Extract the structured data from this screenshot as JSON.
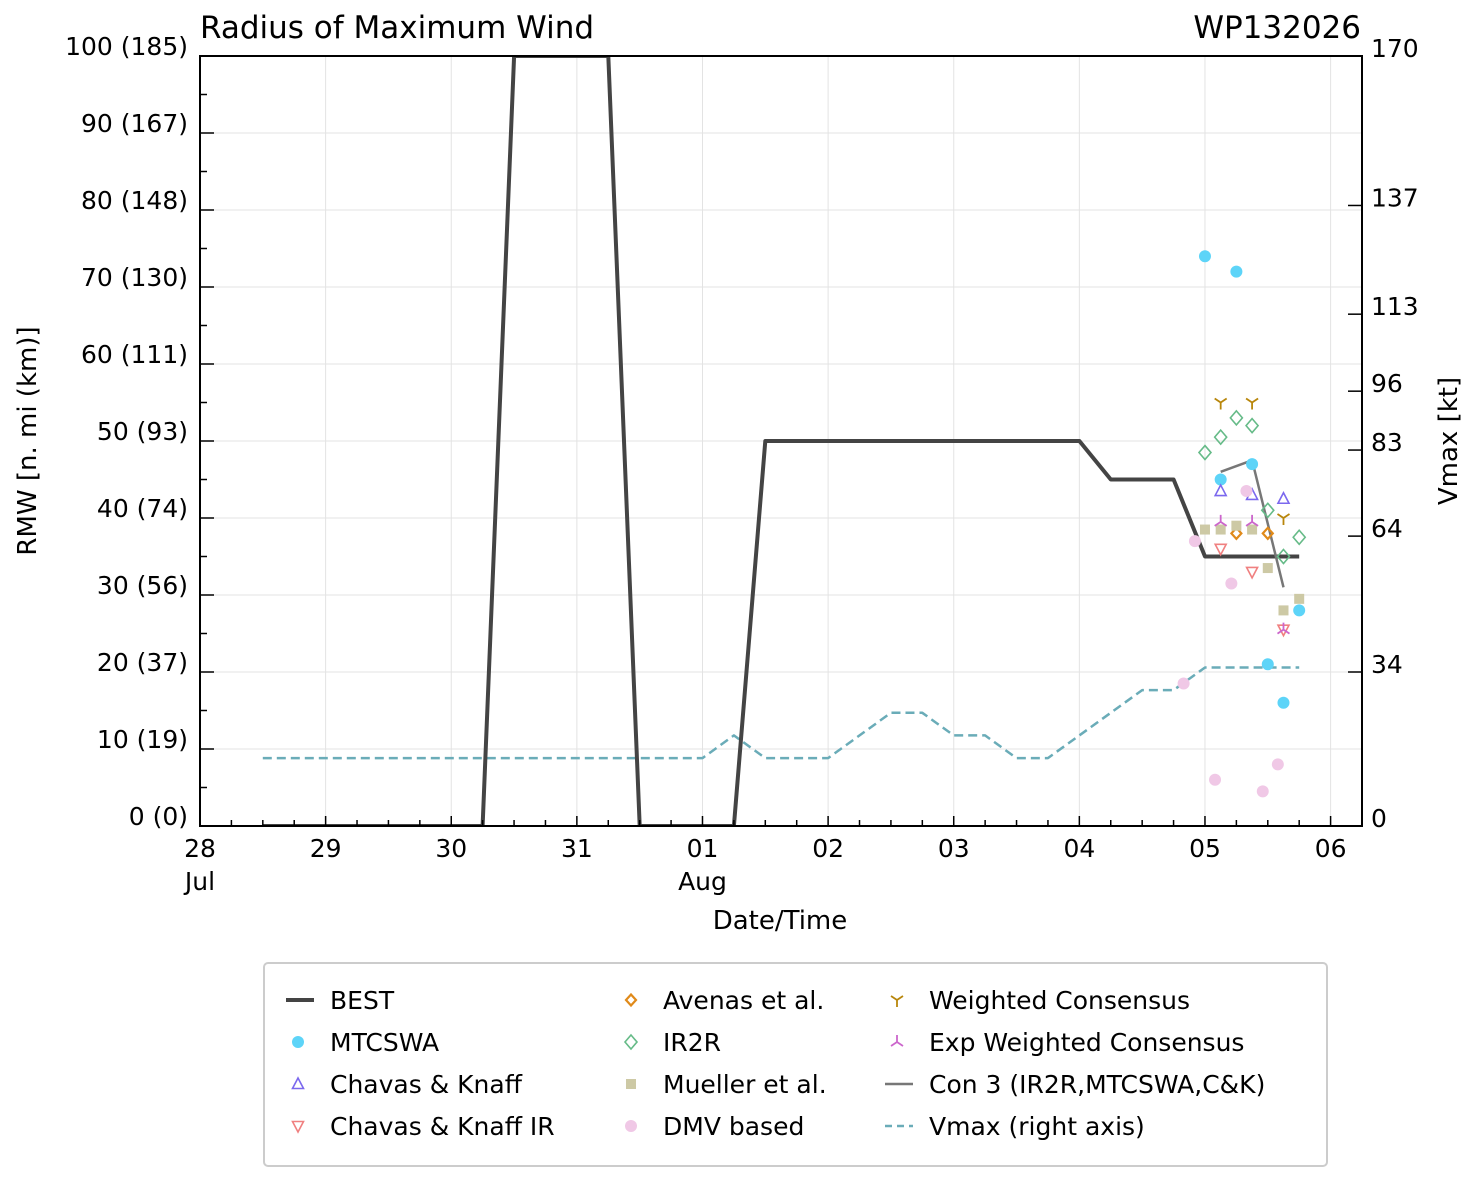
{
  "chart_data": {
    "type": "line",
    "title": "Radius of Maximum Wind",
    "storm_id": "WP132026",
    "xlabel": "Date/Time",
    "ylabel": "RMW [n. mi (km)]",
    "y2label": "Vmax [kt]",
    "xlim_days": [
      0,
      9.25
    ],
    "ylim": [
      0,
      100
    ],
    "y2lim": [
      0,
      170
    ],
    "grid": true,
    "legend_position": "bottom",
    "x_ticks": [
      {
        "day": 0,
        "label": "28",
        "sub": "Jul"
      },
      {
        "day": 1,
        "label": "29",
        "sub": ""
      },
      {
        "day": 2,
        "label": "30",
        "sub": ""
      },
      {
        "day": 3,
        "label": "31",
        "sub": ""
      },
      {
        "day": 4,
        "label": "01",
        "sub": "Aug"
      },
      {
        "day": 5,
        "label": "02",
        "sub": ""
      },
      {
        "day": 6,
        "label": "03",
        "sub": ""
      },
      {
        "day": 7,
        "label": "04",
        "sub": ""
      },
      {
        "day": 8,
        "label": "05",
        "sub": ""
      },
      {
        "day": 9,
        "label": "06",
        "sub": ""
      }
    ],
    "y_ticks": [
      {
        "value": 0,
        "label": "0 (0)"
      },
      {
        "value": 10,
        "label": "10 (19)"
      },
      {
        "value": 20,
        "label": "20 (37)"
      },
      {
        "value": 30,
        "label": "30 (56)"
      },
      {
        "value": 40,
        "label": "40 (74)"
      },
      {
        "value": 50,
        "label": "50 (93)"
      },
      {
        "value": 60,
        "label": "60 (111)"
      },
      {
        "value": 70,
        "label": "70 (130)"
      },
      {
        "value": 80,
        "label": "80 (148)"
      },
      {
        "value": 90,
        "label": "90 (167)"
      },
      {
        "value": 100,
        "label": "100 (185)"
      }
    ],
    "y2_ticks": [
      {
        "value": 0,
        "label": "0"
      },
      {
        "value": 34,
        "label": "34"
      },
      {
        "value": 64,
        "label": "64"
      },
      {
        "value": 83,
        "label": "83"
      },
      {
        "value": 96,
        "label": "96"
      },
      {
        "value": 113,
        "label": "113"
      },
      {
        "value": 137,
        "label": "137"
      },
      {
        "value": 170,
        "label": "170"
      }
    ],
    "series": [
      {
        "name": "BEST",
        "kind": "line",
        "color": "#444444",
        "width": 4,
        "axis": "left",
        "points": [
          [
            0.5,
            0
          ],
          [
            2.25,
            0
          ],
          [
            2.5,
            100
          ],
          [
            3.25,
            100
          ],
          [
            3.5,
            0
          ],
          [
            4.25,
            0
          ],
          [
            4.5,
            50
          ],
          [
            7.0,
            50
          ],
          [
            7.25,
            45
          ],
          [
            7.75,
            45
          ],
          [
            8.0,
            35
          ],
          [
            8.75,
            35
          ]
        ]
      },
      {
        "name": "MTCSWA",
        "kind": "marker",
        "marker": "circle-filled",
        "color": "#5dd4f8",
        "axis": "left",
        "points": [
          [
            8.0,
            74
          ],
          [
            8.25,
            72
          ],
          [
            8.125,
            45
          ],
          [
            8.375,
            47
          ],
          [
            8.5,
            21
          ],
          [
            8.625,
            16
          ],
          [
            8.75,
            28
          ]
        ]
      },
      {
        "name": "Chavas & Knaff",
        "kind": "marker",
        "marker": "triangle-up",
        "color": "#7b68ee",
        "axis": "left",
        "points": [
          [
            8.125,
            43.5
          ],
          [
            8.375,
            43
          ],
          [
            8.625,
            42.5
          ]
        ]
      },
      {
        "name": "Chavas & Knaff IR",
        "kind": "marker",
        "marker": "triangle-down",
        "color": "#f08080",
        "axis": "left",
        "points": [
          [
            8.125,
            36
          ],
          [
            8.375,
            33
          ],
          [
            8.625,
            25.5
          ]
        ]
      },
      {
        "name": "Avenas et al.",
        "kind": "marker",
        "marker": "diamond-small",
        "color": "#e08a1a",
        "axis": "left",
        "points": [
          [
            8.25,
            38
          ],
          [
            8.5,
            38
          ]
        ]
      },
      {
        "name": "IR2R",
        "kind": "marker",
        "marker": "diamond",
        "color": "#66bb88",
        "axis": "left",
        "points": [
          [
            8.0,
            48.5
          ],
          [
            8.125,
            50.5
          ],
          [
            8.25,
            53
          ],
          [
            8.375,
            52
          ],
          [
            8.5,
            41
          ],
          [
            8.625,
            35
          ],
          [
            8.75,
            37.5
          ]
        ]
      },
      {
        "name": "Mueller et al.",
        "kind": "marker",
        "marker": "square-filled",
        "color": "#cdc9a5",
        "axis": "left",
        "points": [
          [
            8.0,
            38.5
          ],
          [
            8.125,
            38.5
          ],
          [
            8.25,
            39
          ],
          [
            8.375,
            38.5
          ],
          [
            8.5,
            33.5
          ],
          [
            8.625,
            28
          ],
          [
            8.75,
            29.5
          ]
        ]
      },
      {
        "name": "DMV based",
        "kind": "marker",
        "marker": "circle-filled",
        "color": "#f0c8e6",
        "axis": "left",
        "points": [
          [
            7.83,
            18.5
          ],
          [
            7.92,
            37
          ],
          [
            8.08,
            6
          ],
          [
            8.21,
            31.5
          ],
          [
            8.33,
            43.5
          ],
          [
            8.46,
            4.5
          ],
          [
            8.58,
            8
          ]
        ]
      },
      {
        "name": "Weighted Consensus",
        "kind": "marker",
        "marker": "tri-down",
        "color": "#b8860b",
        "axis": "left",
        "points": [
          [
            8.125,
            55
          ],
          [
            8.375,
            55
          ],
          [
            8.625,
            40
          ]
        ]
      },
      {
        "name": "Exp Weighted Consensus",
        "kind": "marker",
        "marker": "tri-up",
        "color": "#cc66cc",
        "axis": "left",
        "points": [
          [
            8.125,
            39.5
          ],
          [
            8.375,
            39.5
          ],
          [
            8.625,
            25.5
          ]
        ]
      },
      {
        "name": "Con 3 (IR2R,MTCSWA,C&K)",
        "kind": "line",
        "color": "#777777",
        "width": 2.5,
        "axis": "left",
        "points": [
          [
            8.125,
            46
          ],
          [
            8.375,
            47.5
          ],
          [
            8.625,
            31
          ]
        ]
      },
      {
        "name": "Vmax (right axis)",
        "kind": "dashed",
        "color": "#6aacb8",
        "width": 2.5,
        "axis": "right",
        "points": [
          [
            0.5,
            15
          ],
          [
            4.0,
            15
          ],
          [
            4.25,
            20
          ],
          [
            4.5,
            15
          ],
          [
            5.0,
            15
          ],
          [
            5.5,
            25
          ],
          [
            5.75,
            25
          ],
          [
            6.0,
            20
          ],
          [
            6.25,
            20
          ],
          [
            6.5,
            15
          ],
          [
            6.75,
            15
          ],
          [
            7.5,
            30
          ],
          [
            7.75,
            30
          ],
          [
            8.0,
            35
          ],
          [
            8.75,
            35
          ]
        ]
      }
    ]
  }
}
